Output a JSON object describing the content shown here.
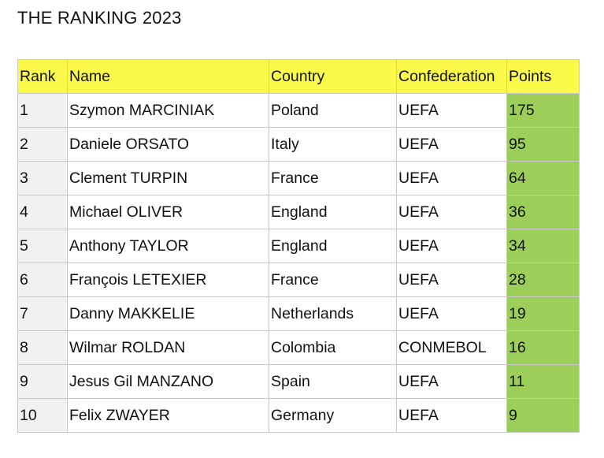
{
  "header": {
    "title": "THE RANKING 2023"
  },
  "table": {
    "columns": [
      "Rank",
      "Name",
      "Country",
      "Confederation",
      "Points"
    ],
    "rows": [
      [
        1,
        "Szymon MARCINIAK",
        "Poland",
        "UEFA",
        175
      ],
      [
        2,
        "Daniele ORSATO",
        "Italy",
        "UEFA",
        95
      ],
      [
        3,
        "Clement TURPIN",
        "France",
        "UEFA",
        64
      ],
      [
        4,
        "Michael OLIVER",
        "England",
        "UEFA",
        36
      ],
      [
        5,
        "Anthony TAYLOR",
        "England",
        "UEFA",
        34
      ],
      [
        6,
        "François LETEXIER",
        "France",
        "UEFA",
        28
      ],
      [
        7,
        "Danny MAKKELIE",
        "Netherlands",
        "UEFA",
        19
      ],
      [
        8,
        "Wilmar ROLDAN",
        "Colombia",
        "CONMEBOL",
        16
      ],
      [
        9,
        "Jesus Gil MANZANO",
        "Spain",
        "UEFA",
        11
      ],
      [
        10,
        "Felix ZWAYER",
        "Germany",
        "UEFA",
        9
      ]
    ]
  }
}
